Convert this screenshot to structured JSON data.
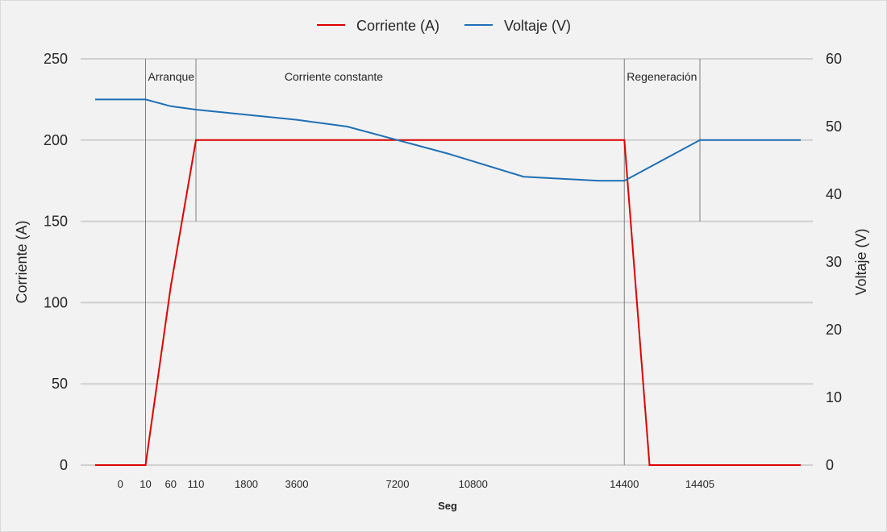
{
  "chart_data": {
    "type": "line",
    "xlabel": "Seg",
    "y_left": {
      "label": "Corriente (A)",
      "lim": [
        0,
        250
      ],
      "ticks": [
        0,
        50,
        100,
        150,
        200,
        250
      ]
    },
    "y_right": {
      "label": "Voltaje (V)",
      "lim": [
        0,
        60
      ],
      "ticks": [
        0,
        10,
        20,
        30,
        40,
        50,
        60
      ]
    },
    "grid": true,
    "legend_position": "top-center",
    "x_tick_labels": [
      "0",
      "10",
      "60",
      "110",
      "1800",
      "3600",
      "7200",
      "10800",
      "14400",
      "14405"
    ],
    "x_tick_slots": [
      1,
      2,
      3,
      4,
      6,
      8,
      12,
      15,
      21,
      24
    ],
    "slot_count": 29,
    "series": [
      {
        "name": "Corriente (A)",
        "axis": "left",
        "color": "#e00000",
        "points": [
          [
            0,
            0
          ],
          [
            2,
            0
          ],
          [
            3,
            110
          ],
          [
            4,
            200
          ],
          [
            10,
            200
          ],
          [
            14,
            200
          ],
          [
            17,
            200
          ],
          [
            20,
            200
          ],
          [
            21,
            200
          ],
          [
            22,
            0
          ],
          [
            24,
            0
          ],
          [
            28,
            0
          ]
        ]
      },
      {
        "name": "Voltaje (V)",
        "axis": "right",
        "color": "#1f6fb4",
        "points": [
          [
            0,
            54
          ],
          [
            2,
            54
          ],
          [
            3,
            53
          ],
          [
            4,
            52.5
          ],
          [
            8,
            51
          ],
          [
            10,
            50
          ],
          [
            14,
            46
          ],
          [
            17,
            42.6
          ],
          [
            20,
            42
          ],
          [
            21,
            42
          ],
          [
            24,
            48
          ],
          [
            28,
            48
          ]
        ]
      }
    ],
    "markers": [
      {
        "slot": 2,
        "label": "Arranque"
      },
      {
        "slot": 4,
        "label": "Corriente constante"
      },
      {
        "slot": 21,
        "label": "Regeneración"
      },
      {
        "slot": 24,
        "label": ""
      }
    ]
  }
}
